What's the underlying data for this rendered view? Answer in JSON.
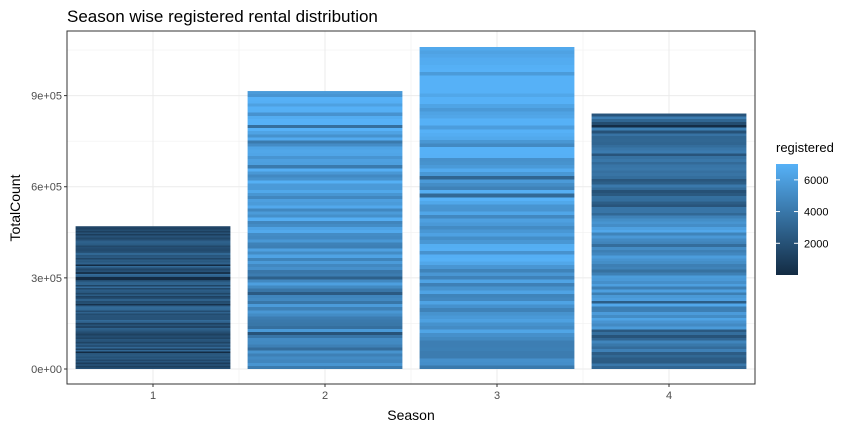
{
  "chart_data": {
    "type": "bar",
    "title": "Season wise registered rental distribution",
    "xlabel": "Season",
    "ylabel": "TotalCount",
    "categories": [
      "1",
      "2",
      "3",
      "4"
    ],
    "values": [
      470000,
      915000,
      1060000,
      841000
    ],
    "ylim": [
      0,
      1060000
    ],
    "y_ticks": [
      0,
      300000,
      600000,
      900000
    ],
    "y_tick_labels": [
      "0e+00",
      "3e+05",
      "6e+05",
      "9e+05"
    ],
    "grid": true,
    "fill_by": "registered",
    "legend": {
      "title": "registered",
      "position": "right",
      "min": 0,
      "max": 7000,
      "ticks": [
        2000,
        4000,
        6000
      ],
      "tick_labels": [
        "2000",
        "4000",
        "6000"
      ]
    },
    "colors": {
      "low": "#132b43",
      "high": "#56b1f7"
    }
  }
}
